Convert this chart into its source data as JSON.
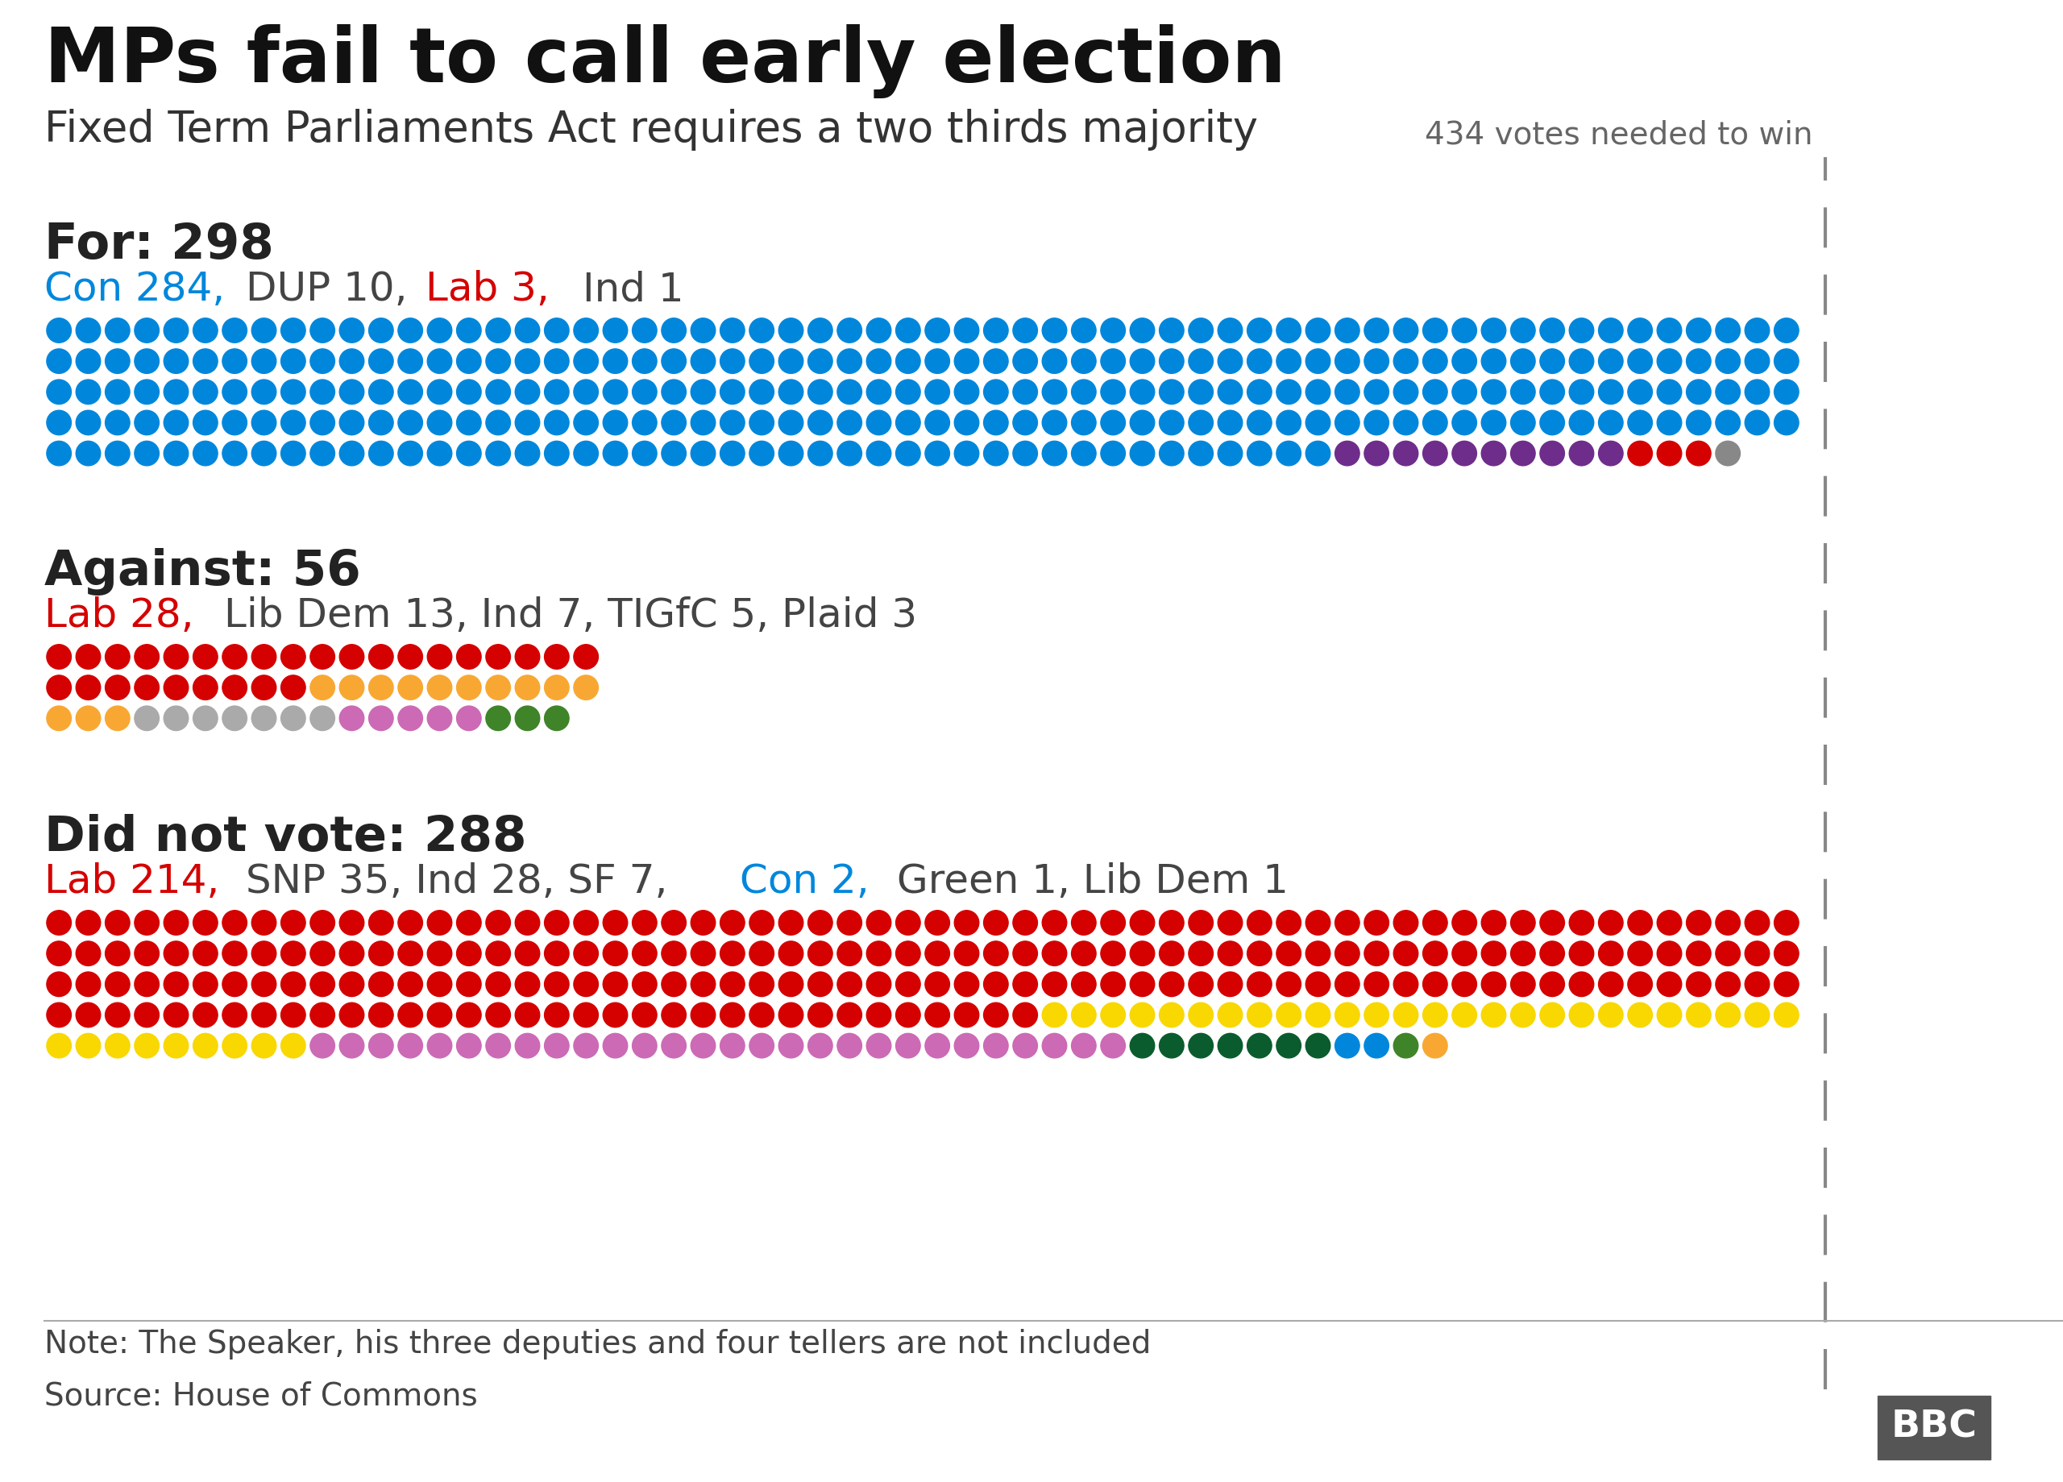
{
  "title": "MPs fail to call early election",
  "subtitle": "Fixed Term Parliaments Act requires a two thirds majority",
  "threshold_label": "434 votes needed to win",
  "note": "Note: The Speaker, his three deputies and four tellers are not included",
  "source": "Source: House of Commons",
  "background_color": "#ffffff",
  "sections": [
    {
      "label_bold": "For: 298",
      "label_detail": [
        {
          "text": "Con 284, ",
          "color": "#0087dc"
        },
        {
          "text": "DUP 10, ",
          "color": "#444444"
        },
        {
          "text": "Lab 3, ",
          "color": "#d50000"
        },
        {
          "text": "Ind 1",
          "color": "#444444"
        }
      ],
      "parties": [
        {
          "name": "Con",
          "count": 284,
          "color": "#0087dc"
        },
        {
          "name": "DUP",
          "count": 10,
          "color": "#6e2d8b"
        },
        {
          "name": "Lab",
          "count": 3,
          "color": "#d50000"
        },
        {
          "name": "Ind",
          "count": 1,
          "color": "#888888"
        }
      ],
      "total": 298,
      "dots_per_row": 60,
      "num_rows": 5
    },
    {
      "label_bold": "Against: 56",
      "label_detail": [
        {
          "text": "Lab 28, ",
          "color": "#d50000"
        },
        {
          "text": "Lib Dem 13, Ind 7, TIGfC 5, Plaid 3",
          "color": "#444444"
        }
      ],
      "parties": [
        {
          "name": "Lab",
          "count": 28,
          "color": "#d50000"
        },
        {
          "name": "LibDem",
          "count": 13,
          "color": "#f8a832"
        },
        {
          "name": "Ind",
          "count": 7,
          "color": "#aaaaaa"
        },
        {
          "name": "TIGfC",
          "count": 5,
          "color": "#cc6ab5"
        },
        {
          "name": "Plaid",
          "count": 3,
          "color": "#3f8428"
        }
      ],
      "total": 56,
      "dots_per_row": 19,
      "num_rows": 3
    },
    {
      "label_bold": "Did not vote: 288",
      "label_detail": [
        {
          "text": "Lab 214, ",
          "color": "#d50000"
        },
        {
          "text": "SNP 35, Ind 28, SF 7, ",
          "color": "#444444"
        },
        {
          "text": "Con 2, ",
          "color": "#0087dc"
        },
        {
          "text": "Green 1, Lib Dem 1",
          "color": "#444444"
        }
      ],
      "parties": [
        {
          "name": "Lab",
          "count": 214,
          "color": "#d50000"
        },
        {
          "name": "SNP",
          "count": 35,
          "color": "#f8d800"
        },
        {
          "name": "Ind",
          "count": 28,
          "color": "#cc6ab5"
        },
        {
          "name": "SF",
          "count": 7,
          "color": "#0a5c2e"
        },
        {
          "name": "Con",
          "count": 2,
          "color": "#0087dc"
        },
        {
          "name": "Green",
          "count": 1,
          "color": "#3f8428"
        },
        {
          "name": "LibDem",
          "count": 1,
          "color": "#f8a832"
        }
      ],
      "total": 288,
      "dots_per_row": 60,
      "num_rows": 5
    }
  ]
}
